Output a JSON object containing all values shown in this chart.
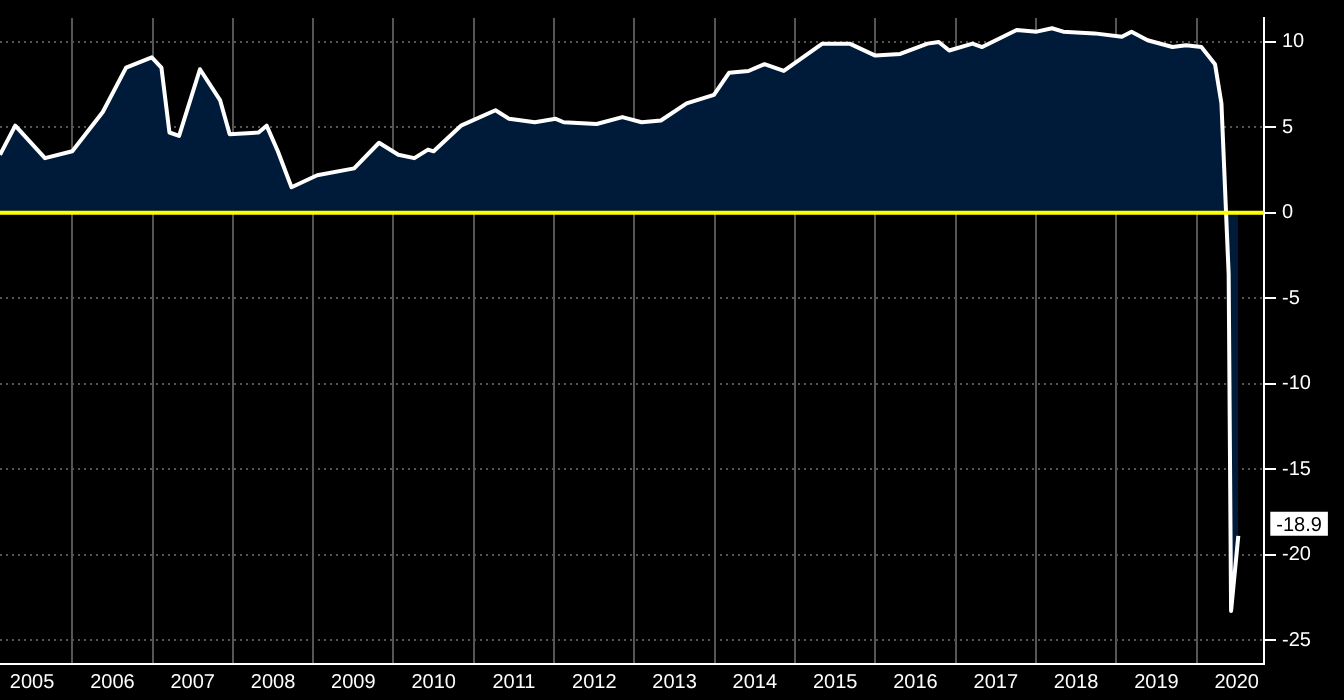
{
  "chart_data": {
    "type": "area",
    "x": [
      2005.1,
      2005.29,
      2005.66,
      2006.0,
      2006.38,
      2006.67,
      2006.99,
      2007.11,
      2007.21,
      2007.33,
      2007.59,
      2007.84,
      2007.96,
      2008.32,
      2008.42,
      2008.56,
      2008.73,
      2009.05,
      2009.51,
      2009.82,
      2010.06,
      2010.26,
      2010.43,
      2010.5,
      2010.84,
      2011.27,
      2011.44,
      2011.76,
      2012.02,
      2012.12,
      2012.53,
      2012.85,
      2013.09,
      2013.33,
      2013.65,
      2013.99,
      2014.18,
      2014.42,
      2014.62,
      2014.86,
      2015.34,
      2015.68,
      2016.0,
      2016.31,
      2016.65,
      2016.79,
      2016.92,
      2017.21,
      2017.33,
      2017.76,
      2018.01,
      2018.2,
      2018.34,
      2018.73,
      2019.07,
      2019.19,
      2019.39,
      2019.7,
      2019.87,
      2020.06,
      2020.23,
      2020.31,
      2020.4,
      2020.43,
      2020.52
    ],
    "series": [
      {
        "color": "#ffffff",
        "values": [
          3.4,
          5.1,
          3.2,
          3.6,
          5.9,
          8.5,
          9.1,
          8.5,
          4.7,
          4.5,
          8.4,
          6.6,
          4.6,
          4.7,
          5.1,
          3.6,
          1.5,
          2.2,
          2.6,
          4.1,
          3.4,
          3.2,
          3.7,
          3.6,
          5.1,
          6.0,
          5.5,
          5.3,
          5.5,
          5.3,
          5.2,
          5.6,
          5.3,
          5.4,
          6.4,
          6.9,
          8.2,
          8.3,
          8.7,
          8.3,
          9.9,
          9.9,
          9.2,
          9.3,
          9.9,
          10,
          9.5,
          9.9,
          9.7,
          10.7,
          10.6,
          10.8,
          10.6,
          10.5,
          10.3,
          10.6,
          10.1,
          9.7,
          9.8,
          9.7,
          8.7,
          6.4,
          -3.6,
          -23.3,
          -18.9
        ]
      }
    ],
    "xlim": [
      2005.1,
      2020.84
    ],
    "xticks": [
      {
        "value": 2005.5,
        "label": "2005"
      },
      {
        "value": 2006,
        "label": null
      },
      {
        "value": 2006.5,
        "label": "2006"
      },
      {
        "value": 2007,
        "label": null
      },
      {
        "value": 2007.5,
        "label": "2007"
      },
      {
        "value": 2008,
        "label": null
      },
      {
        "value": 2008.5,
        "label": "2008"
      },
      {
        "value": 2009,
        "label": null
      },
      {
        "value": 2009.5,
        "label": "2009"
      },
      {
        "value": 2010,
        "label": null
      },
      {
        "value": 2010.5,
        "label": "2010"
      },
      {
        "value": 2011,
        "label": null
      },
      {
        "value": 2011.5,
        "label": "2011"
      },
      {
        "value": 2012,
        "label": null
      },
      {
        "value": 2012.5,
        "label": "2012"
      },
      {
        "value": 2013,
        "label": null
      },
      {
        "value": 2013.5,
        "label": "2013"
      },
      {
        "value": 2014,
        "label": null
      },
      {
        "value": 2014.5,
        "label": "2014"
      },
      {
        "value": 2015,
        "label": null
      },
      {
        "value": 2015.5,
        "label": "2015"
      },
      {
        "value": 2016,
        "label": null
      },
      {
        "value": 2016.5,
        "label": "2016"
      },
      {
        "value": 2017,
        "label": null
      },
      {
        "value": 2017.5,
        "label": "2017"
      },
      {
        "value": 2018,
        "label": null
      },
      {
        "value": 2018.5,
        "label": "2018"
      },
      {
        "value": 2019,
        "label": null
      },
      {
        "value": 2019.5,
        "label": "2019"
      },
      {
        "value": 2020,
        "label": null
      },
      {
        "value": 2020.5,
        "label": "2020"
      }
    ],
    "ylim": [
      -26.4,
      11.4
    ],
    "yticks": [
      -25,
      -20,
      -15,
      -10,
      -5,
      0,
      5,
      10
    ],
    "grid": true,
    "legend": false,
    "ref_lines": [
      {
        "axis": "y",
        "value": 0,
        "color": "#ffff00"
      }
    ],
    "annotations": [
      {
        "text": "-18.9",
        "x": 2020.52,
        "y": -18.9
      }
    ]
  }
}
